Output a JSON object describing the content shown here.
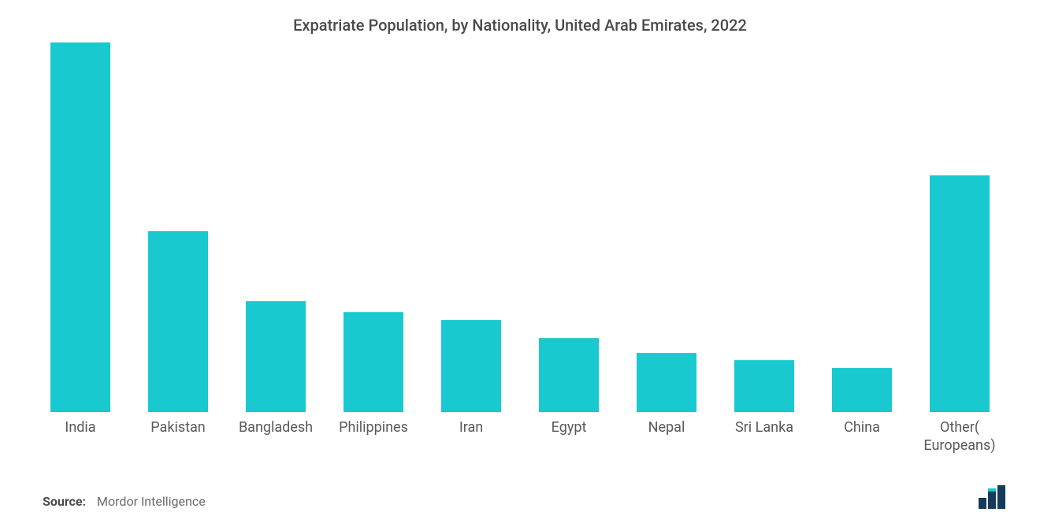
{
  "chart": {
    "type": "bar",
    "title": "Expatriate Population, by Nationality, United Arab Emirates, 2022",
    "title_fontsize": 20,
    "title_color": "#4a4a4a",
    "categories": [
      "India",
      "Pakistan",
      "Bangladesh",
      "Philippines",
      "Iran",
      "Egypt",
      "Nepal",
      "Sri Lanka",
      "China",
      "Other( Europeans)"
    ],
    "values": [
      100,
      49,
      30,
      27,
      25,
      20,
      16,
      14,
      12,
      64
    ],
    "ylim": [
      0,
      100
    ],
    "bar_color": "#18c9cf",
    "background_color": "#ffffff",
    "label_fontsize": 18,
    "label_color": "#5a5a5a",
    "bar_width_ratio": 0.62,
    "grid": false
  },
  "source": {
    "label": "Source:",
    "value": "Mordor Intelligence",
    "label_color": "#4a4a4a",
    "value_color": "#6a6a6a",
    "label_fontsize": 16,
    "label_weight": "700",
    "value_weight": "400"
  },
  "logo": {
    "name": "mordor-logo",
    "bar_color": "#153a5b",
    "accent_color": "#18c9cf"
  }
}
